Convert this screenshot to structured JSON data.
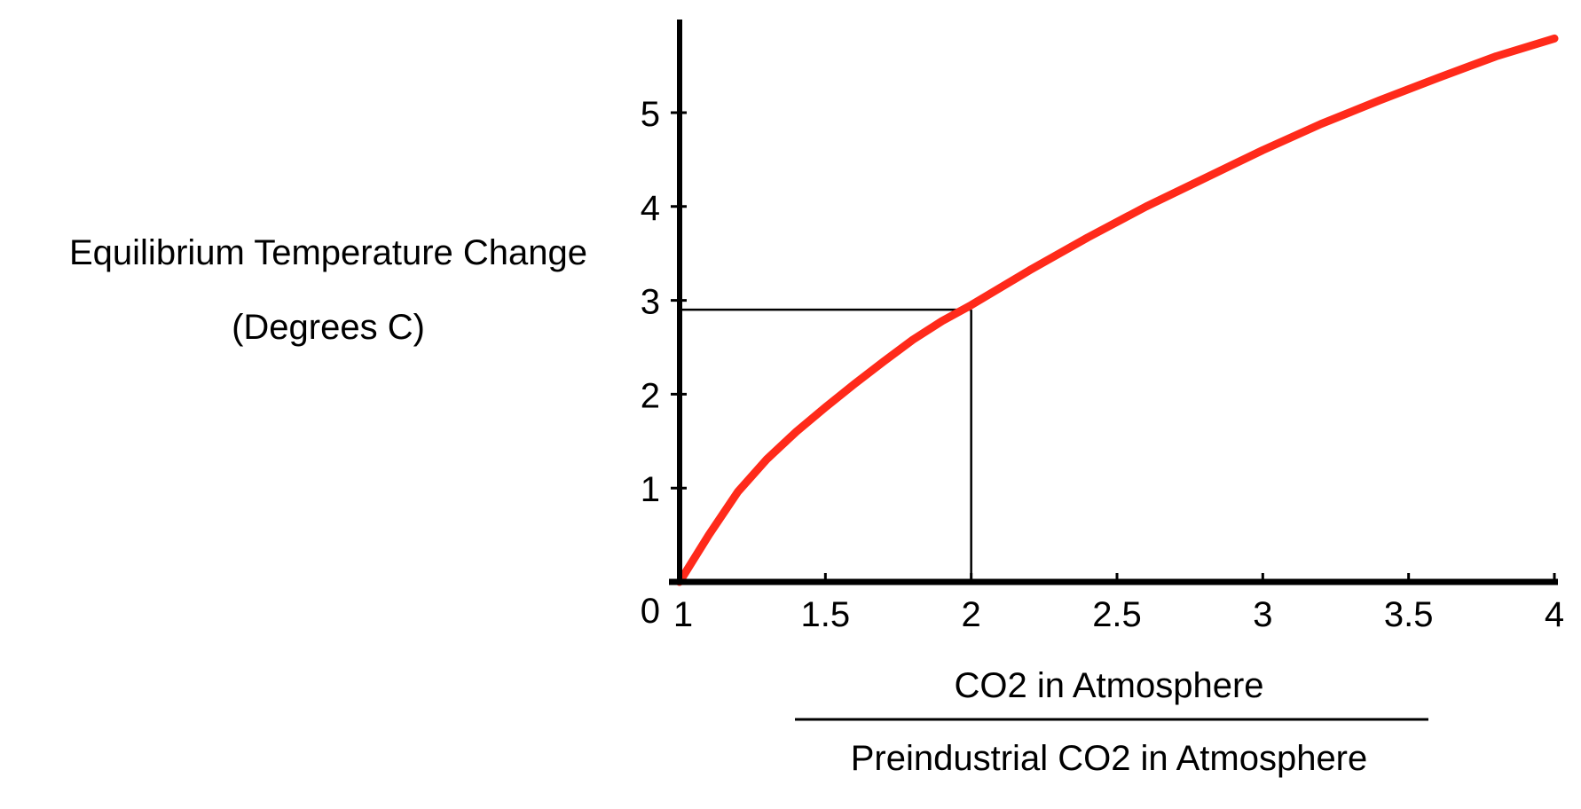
{
  "chart_data": {
    "type": "line",
    "title": "",
    "ylabel": [
      "Equilibrium Temperature Change",
      "(Degrees C)"
    ],
    "xlabel": {
      "numerator": "CO2 in Atmosphere",
      "denominator": "Preindustrial CO2 in Atmosphere"
    },
    "xlim": [
      1,
      4
    ],
    "ylim": [
      0,
      5.9
    ],
    "x_ticks": [
      "1",
      "1.5",
      "2",
      "2.5",
      "3",
      "3.5",
      "4"
    ],
    "y_ticks": [
      "0",
      "1",
      "2",
      "3",
      "4",
      "5"
    ],
    "grid": false,
    "legend": "none",
    "colors": {
      "series": "#ff2a1a",
      "axis": "#000000",
      "reference": "#000000"
    },
    "series": [
      {
        "x": [
          1,
          1.1,
          1.2,
          1.3,
          1.4,
          1.5,
          1.6,
          1.7,
          1.8,
          1.9,
          2,
          2.2,
          2.4,
          2.6,
          2.8,
          3,
          3.2,
          3.4,
          3.6,
          3.8,
          4
        ],
        "y": [
          0,
          0.5,
          0.96,
          1.31,
          1.6,
          1.86,
          2.11,
          2.35,
          2.58,
          2.78,
          2.95,
          3.32,
          3.67,
          4.0,
          4.3,
          4.6,
          4.88,
          5.13,
          5.37,
          5.6,
          5.79
        ]
      }
    ],
    "reference": {
      "x": 2,
      "y": 2.9
    }
  }
}
